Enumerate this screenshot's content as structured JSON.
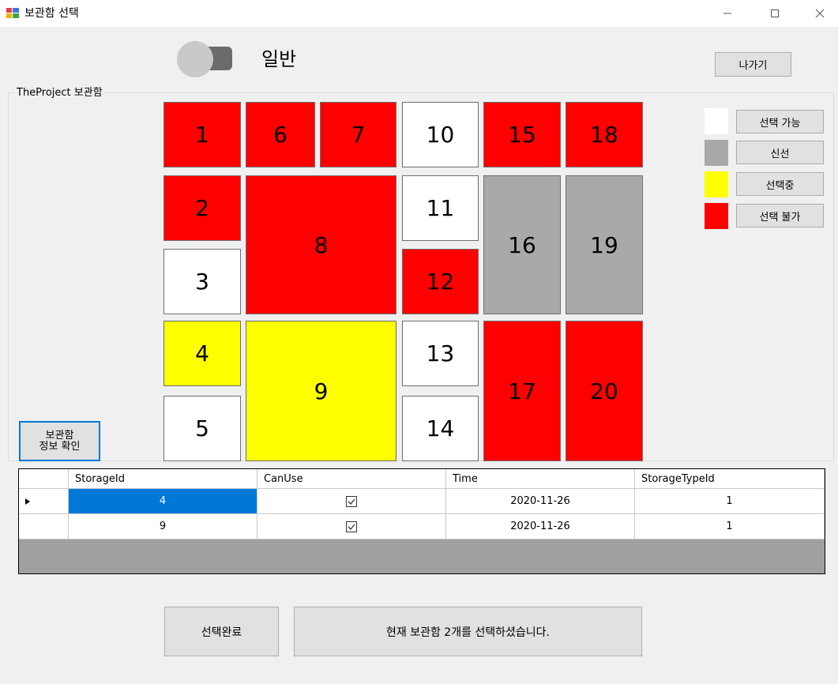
{
  "window": {
    "title": "보관함 선택"
  },
  "mode": {
    "label": "일반"
  },
  "exit_button": "나가기",
  "group": {
    "title": "TheProject 보관함"
  },
  "info_button": {
    "line1": "보관함",
    "line2": "정보 확인"
  },
  "colors": {
    "available": "#ffffff",
    "fresh": "#a9a9a9",
    "selected": "#ffff00",
    "unavailable": "#ff0000",
    "focus": "#0078d7"
  },
  "lockers": [
    {
      "id": "1",
      "status": "unavailable"
    },
    {
      "id": "6",
      "status": "unavailable"
    },
    {
      "id": "7",
      "status": "unavailable"
    },
    {
      "id": "10",
      "status": "available"
    },
    {
      "id": "15",
      "status": "unavailable"
    },
    {
      "id": "18",
      "status": "unavailable"
    },
    {
      "id": "2",
      "status": "unavailable"
    },
    {
      "id": "8",
      "status": "unavailable"
    },
    {
      "id": "11",
      "status": "available"
    },
    {
      "id": "16",
      "status": "fresh"
    },
    {
      "id": "19",
      "status": "fresh"
    },
    {
      "id": "3",
      "status": "available"
    },
    {
      "id": "12",
      "status": "unavailable"
    },
    {
      "id": "4",
      "status": "selected"
    },
    {
      "id": "9",
      "status": "selected"
    },
    {
      "id": "13",
      "status": "available"
    },
    {
      "id": "17",
      "status": "unavailable"
    },
    {
      "id": "20",
      "status": "unavailable"
    },
    {
      "id": "5",
      "status": "available"
    },
    {
      "id": "14",
      "status": "available"
    }
  ],
  "legend": [
    {
      "status": "available",
      "label": "선택 가능"
    },
    {
      "status": "fresh",
      "label": "신선"
    },
    {
      "status": "selected",
      "label": "선택중"
    },
    {
      "status": "unavailable",
      "label": "선택 불가"
    }
  ],
  "table": {
    "columns": [
      "StorageId",
      "CanUse",
      "Time",
      "StorageTypeId"
    ],
    "rows": [
      {
        "StorageId": "4",
        "CanUse": true,
        "Time": "2020-11-26",
        "StorageTypeId": "1"
      },
      {
        "StorageId": "9",
        "CanUse": true,
        "Time": "2020-11-26",
        "StorageTypeId": "1"
      }
    ]
  },
  "footer": {
    "confirm_button": "선택완료",
    "status_text": "현재 보관함 2개를 선택하셨습니다."
  }
}
